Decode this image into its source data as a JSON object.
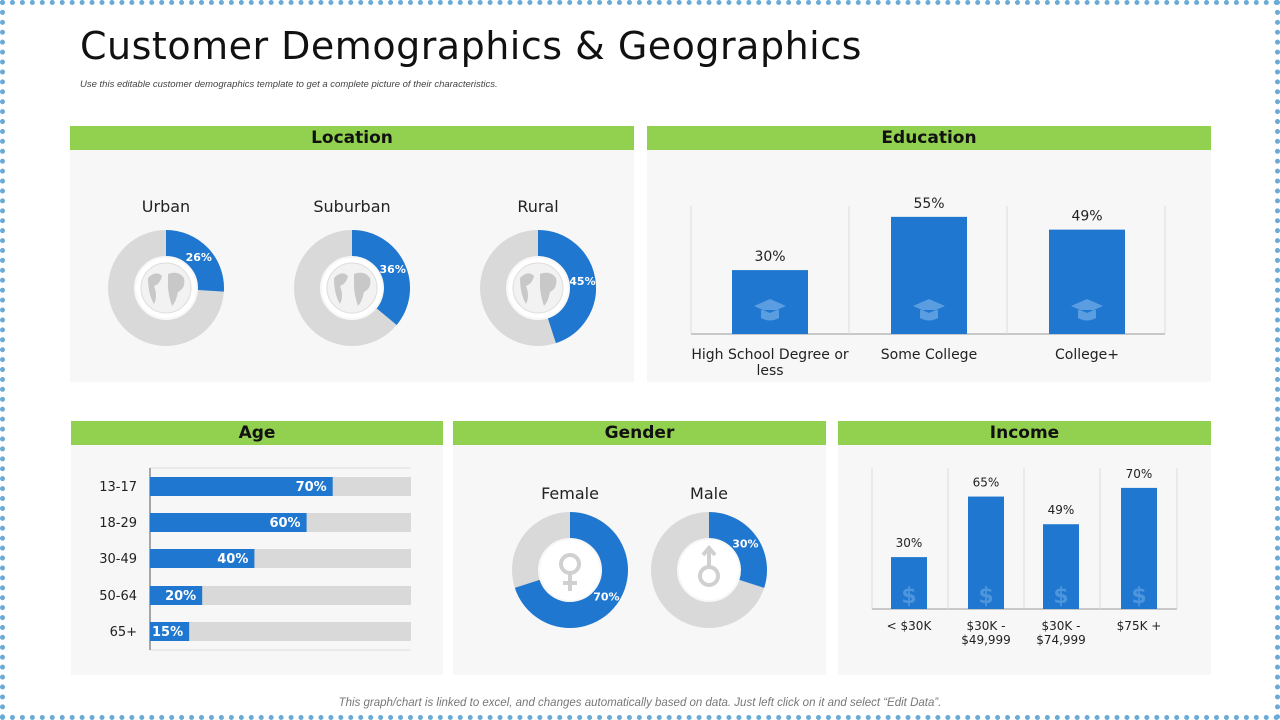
{
  "title": "Customer Demographics & Geographics",
  "subtitle": "Use this editable customer demographics template to get a complete picture of their characteristics.",
  "footer": "This graph/chart is linked to excel, and changes automatically based on data. Just left click on it and select “Edit Data”.",
  "colors": {
    "accent": "#1f77d0",
    "track": "#d9d9d9",
    "header": "#92d050",
    "panel": "#f7f7f7"
  },
  "location": {
    "title": "Location",
    "items": [
      {
        "label": "Urban",
        "value": 26,
        "text": "26%"
      },
      {
        "label": "Suburban",
        "value": 36,
        "text": "36%"
      },
      {
        "label": "Rural",
        "value": 45,
        "text": "45%"
      }
    ],
    "icon": "globe-icon"
  },
  "education": {
    "title": "Education",
    "icon": "graduation-cap-icon",
    "chart_data": {
      "type": "bar",
      "categories": [
        "High School Degree or less",
        "Some College",
        "College+"
      ],
      "values": [
        30,
        55,
        49
      ],
      "labels": [
        "30%",
        "55%",
        "49%"
      ]
    }
  },
  "age": {
    "title": "Age",
    "chart_data": {
      "type": "bar",
      "orientation": "horizontal",
      "categories": [
        "13-17",
        "18-29",
        "30-49",
        "50-64",
        "65+"
      ],
      "values": [
        70,
        60,
        40,
        20,
        15
      ],
      "labels": [
        "70%",
        "60%",
        "40%",
        "20%",
        "15%"
      ]
    }
  },
  "gender": {
    "title": "Gender",
    "items": [
      {
        "label": "Female",
        "value": 70,
        "text": "70%",
        "icon": "female-symbol-icon"
      },
      {
        "label": "Male",
        "value": 30,
        "text": "30%",
        "icon": "male-symbol-icon"
      }
    ]
  },
  "income": {
    "title": "Income",
    "icon": "dollar-icon",
    "chart_data": {
      "type": "bar",
      "categories": [
        "< $30K",
        "$30K - $49,999",
        "$30K - $74,999",
        "$75K +"
      ],
      "values": [
        30,
        65,
        49,
        70
      ],
      "labels": [
        "30%",
        "65%",
        "49%",
        "70%"
      ]
    }
  }
}
